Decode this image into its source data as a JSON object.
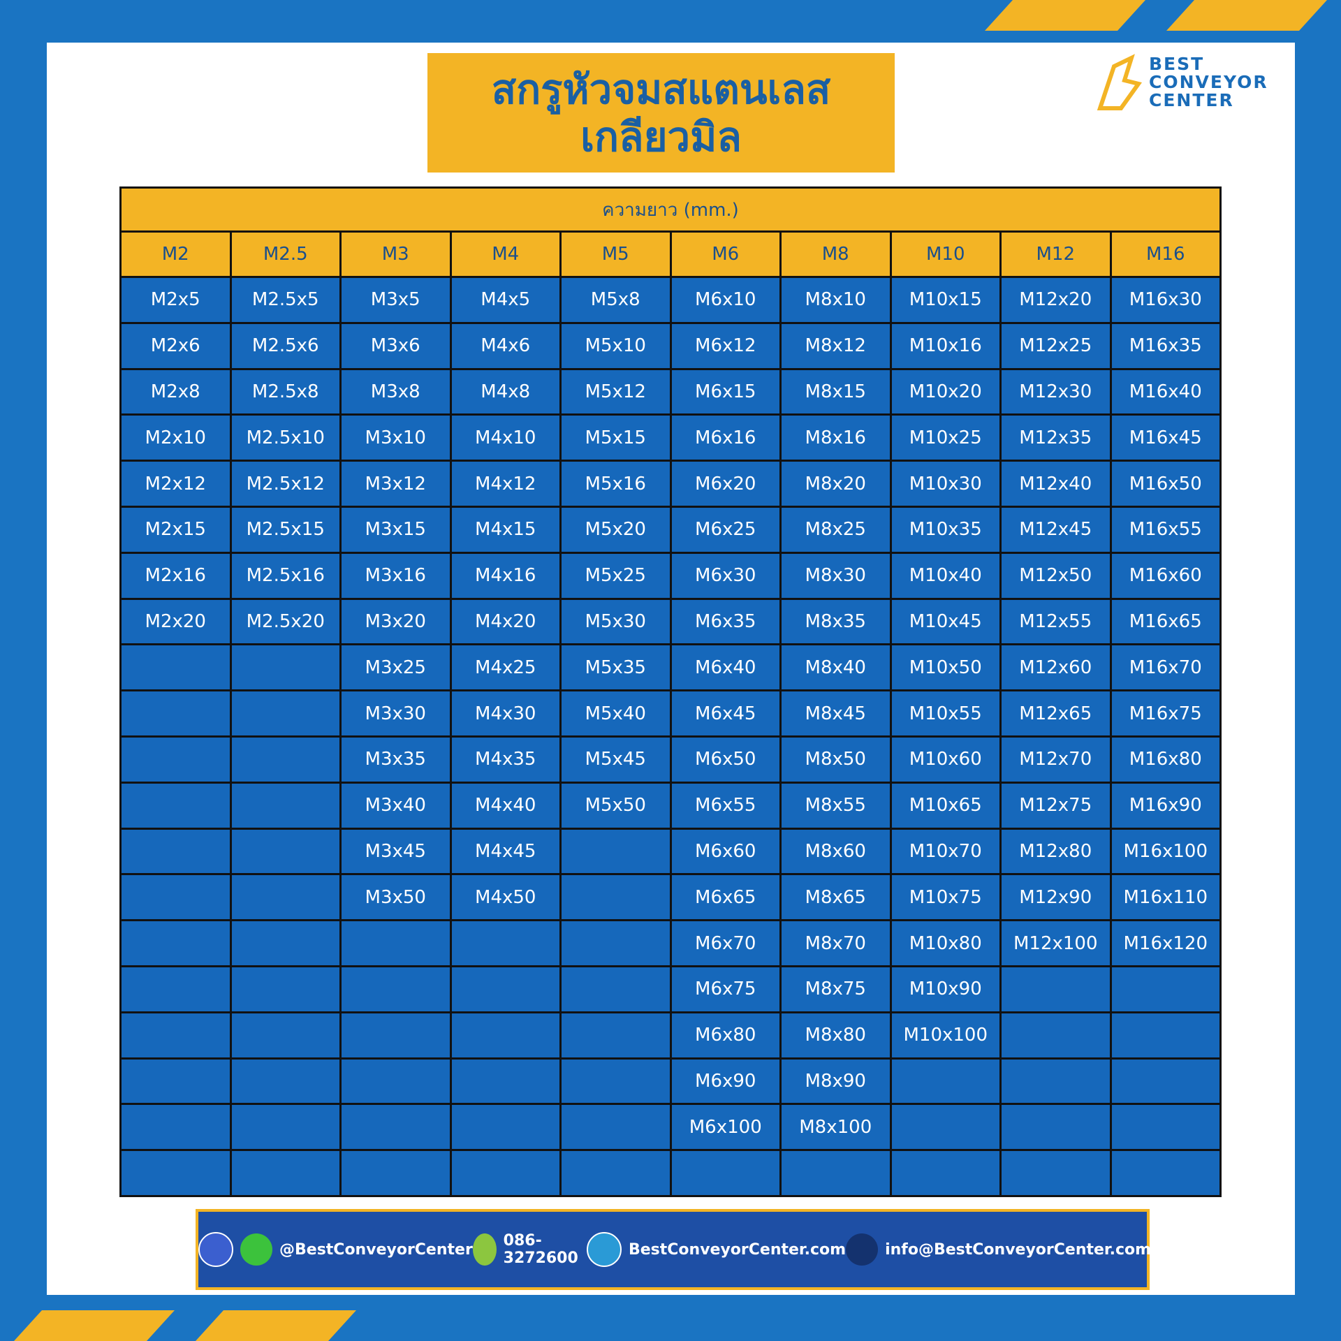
{
  "header": {
    "title_lines": [
      "สกรูหัวจมสแตนเลส",
      "เกลียวมิล"
    ],
    "logo_lines": [
      "BEST",
      "CONVEYOR",
      "CENTER"
    ]
  },
  "table": {
    "caption": "ความยาว (mm.)",
    "columns": [
      {
        "header": "M2",
        "items": [
          "M2x5",
          "M2x6",
          "M2x8",
          "M2x10",
          "M2x12",
          "M2x15",
          "M2x16",
          "M2x20"
        ]
      },
      {
        "header": "M2.5",
        "items": [
          "M2.5x5",
          "M2.5x6",
          "M2.5x8",
          "M2.5x10",
          "M2.5x12",
          "M2.5x15",
          "M2.5x16",
          "M2.5x20"
        ]
      },
      {
        "header": "M3",
        "items": [
          "M3x5",
          "M3x6",
          "M3x8",
          "M3x10",
          "M3x12",
          "M3x15",
          "M3x16",
          "M3x20",
          "M3x25",
          "M3x30",
          "M3x35",
          "M3x40",
          "M3x45",
          "M3x50"
        ]
      },
      {
        "header": "M4",
        "items": [
          "M4x5",
          "M4x6",
          "M4x8",
          "M4x10",
          "M4x12",
          "M4x15",
          "M4x16",
          "M4x20",
          "M4x25",
          "M4x30",
          "M4x35",
          "M4x40",
          "M4x45",
          "M4x50"
        ]
      },
      {
        "header": "M5",
        "items": [
          "M5x8",
          "M5x10",
          "M5x12",
          "M5x15",
          "M5x16",
          "M5x20",
          "M5x25",
          "M5x30",
          "M5x35",
          "M5x40",
          "M5x45",
          "M5x50"
        ]
      },
      {
        "header": "M6",
        "items": [
          "M6x10",
          "M6x12",
          "M6x15",
          "M6x16",
          "M6x20",
          "M6x25",
          "M6x30",
          "M6x35",
          "M6x40",
          "M6x45",
          "M6x50",
          "M6x55",
          "M6x60",
          "M6x65",
          "M6x70",
          "M6x75",
          "M6x80",
          "M6x90",
          "M6x100"
        ]
      },
      {
        "header": "M8",
        "items": [
          "M8x10",
          "M8x12",
          "M8x15",
          "M8x16",
          "M8x20",
          "M8x25",
          "M8x30",
          "M8x35",
          "M8x40",
          "M8x45",
          "M8x50",
          "M8x55",
          "M8x60",
          "M8x65",
          "M8x70",
          "M8x75",
          "M8x80",
          "M8x90",
          "M8x100"
        ]
      },
      {
        "header": "M10",
        "items": [
          "M10x15",
          "M10x16",
          "M10x20",
          "M10x25",
          "M10x30",
          "M10x35",
          "M10x40",
          "M10x45",
          "M10x50",
          "M10x55",
          "M10x60",
          "M10x65",
          "M10x70",
          "M10x75",
          "M10x80",
          "M10x90",
          "M10x100"
        ]
      },
      {
        "header": "M12",
        "items": [
          "M12x20",
          "M12x25",
          "M12x30",
          "M12x35",
          "M12x40",
          "M12x45",
          "M12x50",
          "M12x55",
          "M12x60",
          "M12x65",
          "M12x70",
          "M12x75",
          "M12x80",
          "M12x90",
          "M12x100"
        ]
      },
      {
        "header": "M16",
        "items": [
          "M16x30",
          "M16x35",
          "M16x40",
          "M16x45",
          "M16x50",
          "M16x55",
          "M16x60",
          "M16x65",
          "M16x70",
          "M16x75",
          "M16x80",
          "M16x90",
          "M16x100",
          "M16x110",
          "M16x120"
        ]
      }
    ]
  },
  "footer": {
    "items": [
      "@BestConveyorCenter",
      "086-3272600",
      "BestConveyorCenter.com",
      "info@BestConveyorCenter.com"
    ]
  }
}
